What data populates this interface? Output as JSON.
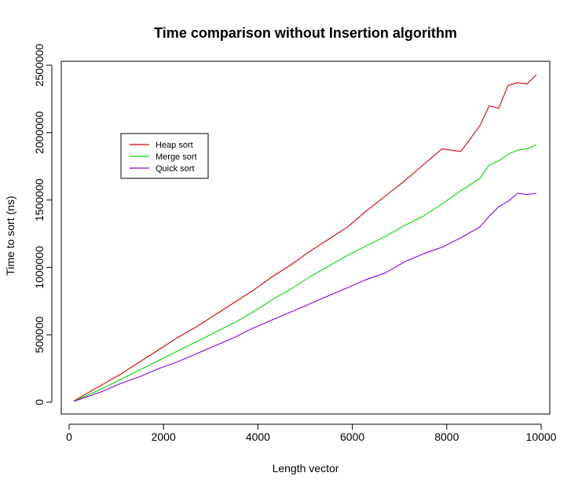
{
  "chart_data": {
    "type": "line",
    "title": "Time comparison without Insertion algorithm",
    "xlabel": "Length vector",
    "ylabel": "Time to sort (ns)",
    "xlim": [
      100,
      9900
    ],
    "ylim": [
      0,
      2500000
    ],
    "x_ticks": [
      "0",
      "2000",
      "4000",
      "6000",
      "8000",
      "10000"
    ],
    "y_ticks": [
      "0",
      "500000",
      "1000000",
      "1500000",
      "2000000",
      "2500000"
    ],
    "grid": false,
    "legend_position": "top-left",
    "x": [
      100,
      700,
      1100,
      1500,
      1900,
      2300,
      2700,
      3100,
      3500,
      3900,
      4300,
      4700,
      5100,
      5500,
      5900,
      6300,
      6700,
      7100,
      7500,
      7900,
      8300,
      8700,
      8900,
      9100,
      9300,
      9500,
      9700,
      9900
    ],
    "series": [
      {
        "name": "Heap sort",
        "color": "#dd0000",
        "values": [
          10000,
          130000,
          210000,
          300000,
          390000,
          480000,
          560000,
          650000,
          740000,
          830000,
          930000,
          1020000,
          1120000,
          1210000,
          1300000,
          1420000,
          1530000,
          1640000,
          1760000,
          1880000,
          1860000,
          2050000,
          2200000,
          2180000,
          2350000,
          2370000,
          2360000,
          2430000
        ]
      },
      {
        "name": "Merge sort",
        "color": "#00dd00",
        "values": [
          8000,
          100000,
          170000,
          240000,
          310000,
          380000,
          450000,
          520000,
          590000,
          670000,
          760000,
          840000,
          930000,
          1010000,
          1090000,
          1160000,
          1230000,
          1310000,
          1380000,
          1470000,
          1570000,
          1660000,
          1760000,
          1790000,
          1840000,
          1870000,
          1880000,
          1910000
        ]
      },
      {
        "name": "Quick sort",
        "color": "#8800ee",
        "values": [
          6000,
          80000,
          140000,
          190000,
          250000,
          300000,
          360000,
          420000,
          480000,
          550000,
          610000,
          670000,
          730000,
          790000,
          850000,
          910000,
          960000,
          1040000,
          1100000,
          1150000,
          1220000,
          1300000,
          1380000,
          1450000,
          1490000,
          1550000,
          1540000,
          1550000
        ]
      }
    ]
  }
}
